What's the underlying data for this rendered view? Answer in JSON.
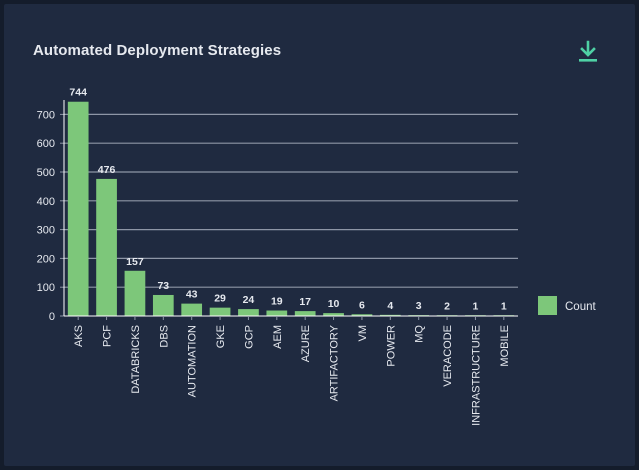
{
  "header": {
    "title": "Automated Deployment Strategies",
    "download_icon": "download-icon"
  },
  "colors": {
    "panel_bg": "#1f2a40",
    "bar": "#7dc77a",
    "text": "#e6e9ef",
    "grid": "#8e96a6",
    "download": "#4fd1a5"
  },
  "chart_data": {
    "type": "bar",
    "title": "Automated Deployment Strategies",
    "xlabel": "",
    "ylabel": "",
    "categories": [
      "AKS",
      "PCF",
      "DATABRICKS",
      "DBS",
      "AUTOMATION",
      "GKE",
      "GCP",
      "AEM",
      "AZURE",
      "ARTIFACTORY",
      "VM",
      "POWER",
      "MQ",
      "VERACODE",
      "INFRASTRUCTURE",
      "MOBILE"
    ],
    "series": [
      {
        "name": "Count",
        "values": [
          744,
          476,
          157,
          73,
          43,
          29,
          24,
          19,
          17,
          10,
          6,
          4,
          3,
          2,
          1,
          1
        ]
      }
    ],
    "ylim": [
      0,
      750
    ],
    "yticks": [
      0,
      100,
      200,
      300,
      400,
      500,
      600,
      700
    ],
    "grid": true,
    "data_labels": true,
    "legend": "right"
  }
}
